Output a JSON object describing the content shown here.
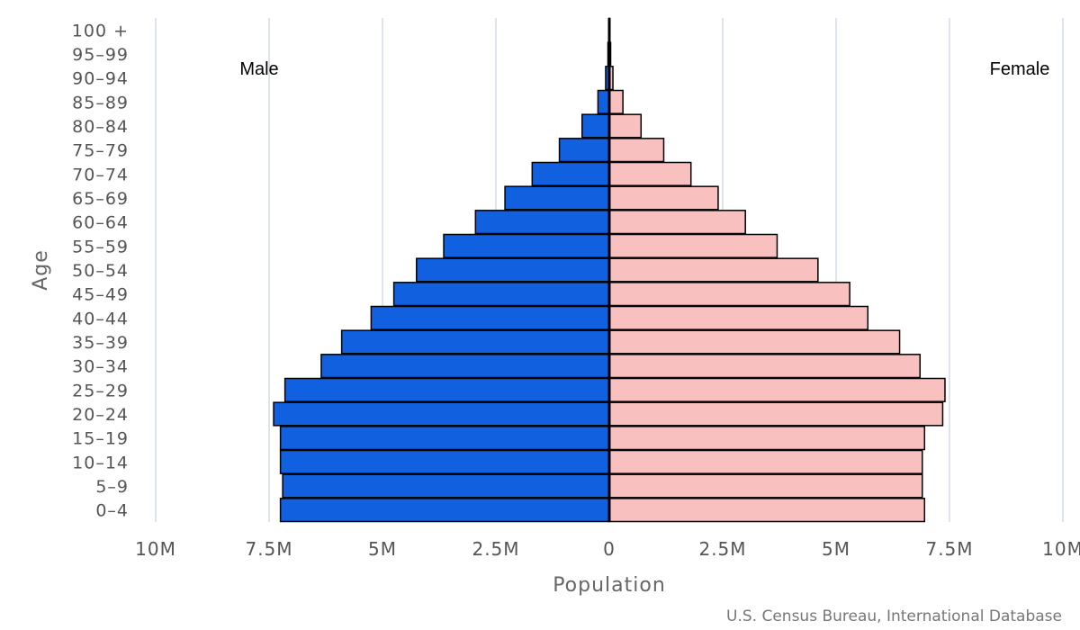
{
  "chart_data": {
    "type": "bar",
    "orientation": "horizontal",
    "layout": "population-pyramid",
    "categories": [
      "0-4",
      "5-9",
      "10-14",
      "15-19",
      "20-24",
      "25-29",
      "30-34",
      "35-39",
      "40-44",
      "45-49",
      "50-54",
      "55-59",
      "60-64",
      "65-69",
      "70-74",
      "75-79",
      "80-84",
      "85-89",
      "90-94",
      "95-99",
      "100 +"
    ],
    "series": [
      {
        "name": "Male",
        "color": "#1060e0",
        "values": [
          7.25,
          7.2,
          7.25,
          7.25,
          7.4,
          7.15,
          6.35,
          5.9,
          5.25,
          4.75,
          4.25,
          3.65,
          2.95,
          2.3,
          1.7,
          1.1,
          0.6,
          0.25,
          0.08,
          0.03,
          0.01
        ]
      },
      {
        "name": "Female",
        "color": "#f9c0c0",
        "values": [
          6.95,
          6.9,
          6.9,
          6.95,
          7.35,
          7.4,
          6.85,
          6.4,
          5.7,
          5.3,
          4.6,
          3.7,
          3.0,
          2.4,
          1.8,
          1.2,
          0.7,
          0.3,
          0.08,
          0.03,
          0.01
        ]
      }
    ],
    "x_unit": "millions",
    "xlim": [
      -10,
      10
    ],
    "xticks": [
      -10,
      -7.5,
      -5,
      -2.5,
      0,
      2.5,
      5,
      7.5,
      10
    ],
    "xtick_labels": [
      "10M",
      "7.5M",
      "5M",
      "2.5M",
      "0",
      "2.5M",
      "5M",
      "7.5M",
      "10M"
    ],
    "xlabel": "Population",
    "ylabel": "Age",
    "left_label": "Male",
    "right_label": "Female",
    "grid": true,
    "credit": "U.S. Census Bureau, International Database"
  }
}
